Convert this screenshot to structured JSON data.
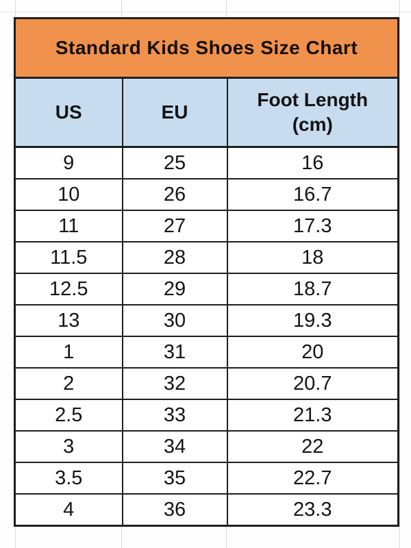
{
  "title": "Standard Kids Shoes Size Chart",
  "header": {
    "col1": "US",
    "col2": "EU",
    "col3_line1": "Foot Length",
    "col3_line2": "(cm)"
  },
  "colors": {
    "title_bg": "#f0914c",
    "header_bg": "#c7dcef",
    "border": "#1e1e1e",
    "text": "#141414",
    "gridline": "#d8d8d8",
    "background": "#fefefe"
  },
  "chart_data": {
    "type": "table",
    "title": "Standard Kids Shoes Size Chart",
    "columns": [
      "US",
      "EU",
      "Foot Length (cm)"
    ],
    "rows": [
      [
        "9",
        "25",
        "16"
      ],
      [
        "10",
        "26",
        "16.7"
      ],
      [
        "11",
        "27",
        "17.3"
      ],
      [
        "11.5",
        "28",
        "18"
      ],
      [
        "12.5",
        "29",
        "18.7"
      ],
      [
        "13",
        "30",
        "19.3"
      ],
      [
        "1",
        "31",
        "20"
      ],
      [
        "2",
        "32",
        "20.7"
      ],
      [
        "2.5",
        "33",
        "21.3"
      ],
      [
        "3",
        "34",
        "22"
      ],
      [
        "3.5",
        "35",
        "22.7"
      ],
      [
        "4",
        "36",
        "23.3"
      ]
    ]
  }
}
